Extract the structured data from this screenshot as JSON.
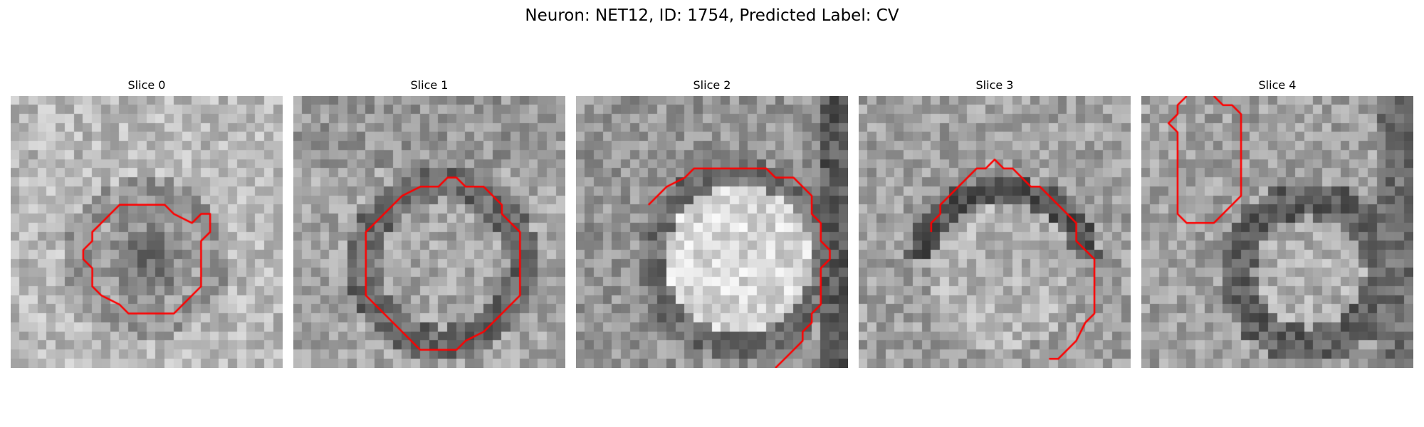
{
  "figure": {
    "suptitle": "Neuron: NET12, ID: 1754, Predicted Label: CV",
    "contour_color": "#ff0000",
    "grid_size": 30
  },
  "panels": [
    {
      "title": "Slice 0",
      "contour": [
        [
          10,
          14
        ],
        [
          11,
          13
        ],
        [
          12,
          12
        ],
        [
          14,
          12
        ],
        [
          17,
          12
        ],
        [
          18,
          13
        ],
        [
          20,
          14
        ],
        [
          21,
          13
        ],
        [
          22,
          13
        ],
        [
          22,
          15
        ],
        [
          21,
          16
        ],
        [
          21,
          21
        ],
        [
          20,
          22
        ],
        [
          19,
          23
        ],
        [
          18,
          24
        ],
        [
          16,
          24
        ],
        [
          14,
          24
        ],
        [
          13,
          24
        ],
        [
          12,
          23
        ],
        [
          10,
          22
        ],
        [
          9,
          21
        ],
        [
          9,
          19
        ],
        [
          8,
          18
        ],
        [
          8,
          17
        ],
        [
          9,
          16
        ],
        [
          9,
          15
        ],
        [
          10,
          14
        ]
      ]
    },
    {
      "title": "Slice 1",
      "contour": [
        [
          9,
          14
        ],
        [
          10,
          13
        ],
        [
          12,
          11
        ],
        [
          14,
          10
        ],
        [
          16,
          10
        ],
        [
          17,
          9
        ],
        [
          18,
          9
        ],
        [
          19,
          10
        ],
        [
          21,
          10
        ],
        [
          23,
          12
        ],
        [
          23,
          13
        ],
        [
          24,
          14
        ],
        [
          25,
          15
        ],
        [
          25,
          16
        ],
        [
          25,
          17
        ],
        [
          25,
          19
        ],
        [
          25,
          22
        ],
        [
          24,
          23
        ],
        [
          23,
          24
        ],
        [
          22,
          25
        ],
        [
          21,
          26
        ],
        [
          19,
          27
        ],
        [
          18,
          28
        ],
        [
          17,
          28
        ],
        [
          15,
          28
        ],
        [
          14,
          28
        ],
        [
          13,
          27
        ],
        [
          12,
          26
        ],
        [
          11,
          25
        ],
        [
          10,
          24
        ],
        [
          9,
          23
        ],
        [
          8,
          22
        ],
        [
          8,
          21
        ],
        [
          8,
          20
        ],
        [
          8,
          18
        ],
        [
          8,
          16
        ],
        [
          8,
          15
        ],
        [
          9,
          14
        ]
      ]
    },
    {
      "title": "Slice 2",
      "contour": [
        [
          8,
          12
        ],
        [
          9,
          11
        ],
        [
          10,
          10
        ],
        [
          12,
          9
        ],
        [
          13,
          8
        ],
        [
          15,
          8
        ],
        [
          17,
          8
        ],
        [
          19,
          8
        ],
        [
          21,
          8
        ],
        [
          22,
          9
        ],
        [
          24,
          9
        ],
        [
          25,
          10
        ],
        [
          26,
          11
        ],
        [
          26,
          13
        ],
        [
          27,
          14
        ],
        [
          27,
          16
        ],
        [
          28,
          17
        ],
        [
          28,
          18
        ],
        [
          27,
          19
        ],
        [
          27,
          21
        ],
        [
          27,
          23
        ],
        [
          26,
          24
        ],
        [
          26,
          25
        ],
        [
          25,
          26
        ],
        [
          25,
          27
        ],
        [
          24,
          28
        ],
        [
          23,
          29
        ],
        [
          22,
          30
        ]
      ]
    },
    {
      "title": "Slice 3",
      "contour": [
        [
          8,
          15
        ],
        [
          8,
          14
        ],
        [
          9,
          13
        ],
        [
          9,
          12
        ],
        [
          10,
          11
        ],
        [
          11,
          10
        ],
        [
          12,
          9
        ],
        [
          13,
          8
        ],
        [
          14,
          8
        ],
        [
          15,
          7
        ],
        [
          16,
          8
        ],
        [
          17,
          8
        ],
        [
          18,
          9
        ],
        [
          19,
          10
        ],
        [
          20,
          10
        ],
        [
          21,
          11
        ],
        [
          22,
          12
        ],
        [
          23,
          13
        ],
        [
          24,
          14
        ],
        [
          24,
          16
        ],
        [
          25,
          17
        ],
        [
          26,
          18
        ],
        [
          26,
          20
        ],
        [
          26,
          22
        ],
        [
          26,
          24
        ],
        [
          25,
          25
        ],
        [
          24,
          27
        ],
        [
          23,
          28
        ],
        [
          22,
          29
        ],
        [
          21,
          29
        ]
      ]
    },
    {
      "title": "Slice 4",
      "contour": [
        [
          5,
          0
        ],
        [
          4,
          1
        ],
        [
          4,
          2
        ],
        [
          3,
          3
        ],
        [
          4,
          4
        ],
        [
          4,
          6
        ],
        [
          4,
          8
        ],
        [
          4,
          10
        ],
        [
          4,
          13
        ],
        [
          5,
          14
        ],
        [
          6,
          14
        ],
        [
          7,
          14
        ],
        [
          8,
          14
        ],
        [
          9,
          13
        ],
        [
          10,
          12
        ],
        [
          11,
          11
        ],
        [
          11,
          9
        ],
        [
          11,
          7
        ],
        [
          11,
          5
        ],
        [
          11,
          2
        ],
        [
          10,
          1
        ],
        [
          9,
          1
        ],
        [
          8,
          0
        ]
      ]
    }
  ]
}
